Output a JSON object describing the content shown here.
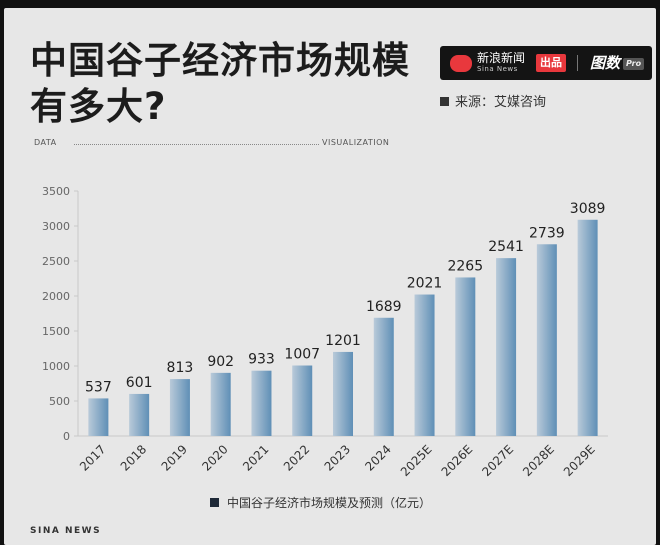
{
  "header": {
    "title": "中国谷子经济市场规模有多大?",
    "brand_name": "新浪新闻",
    "brand_sub": "Sina News",
    "brand_badge": "出品",
    "brand_column": "图数",
    "brand_pro": "Pro",
    "source": "来源：艾媒咨询"
  },
  "tags": {
    "left": "DATA",
    "right": "VISUALIZATION"
  },
  "footer": {
    "text": "SINA NEWS"
  },
  "colors": {
    "bar_light": "#b9cad9",
    "bar_dark": "#5f8fb6",
    "axis": "#c9c9c9",
    "text": "#333333"
  },
  "chart_data": {
    "type": "bar",
    "categories": [
      "2017",
      "2018",
      "2019",
      "2020",
      "2021",
      "2022",
      "2023",
      "2024",
      "2025E",
      "2026E",
      "2027E",
      "2028E",
      "2029E"
    ],
    "series": [
      {
        "name": "中国谷子经济市场规模及预测（亿元）",
        "values": [
          537,
          601,
          813,
          902,
          933,
          1007,
          1201,
          1689,
          2021,
          2265,
          2541,
          2739,
          3089
        ]
      }
    ],
    "yticks": [
      0,
      500,
      1000,
      1500,
      2000,
      2500,
      3000,
      3500
    ],
    "ylim": [
      0,
      3500
    ],
    "legend_position": "bottom",
    "grid": false
  }
}
